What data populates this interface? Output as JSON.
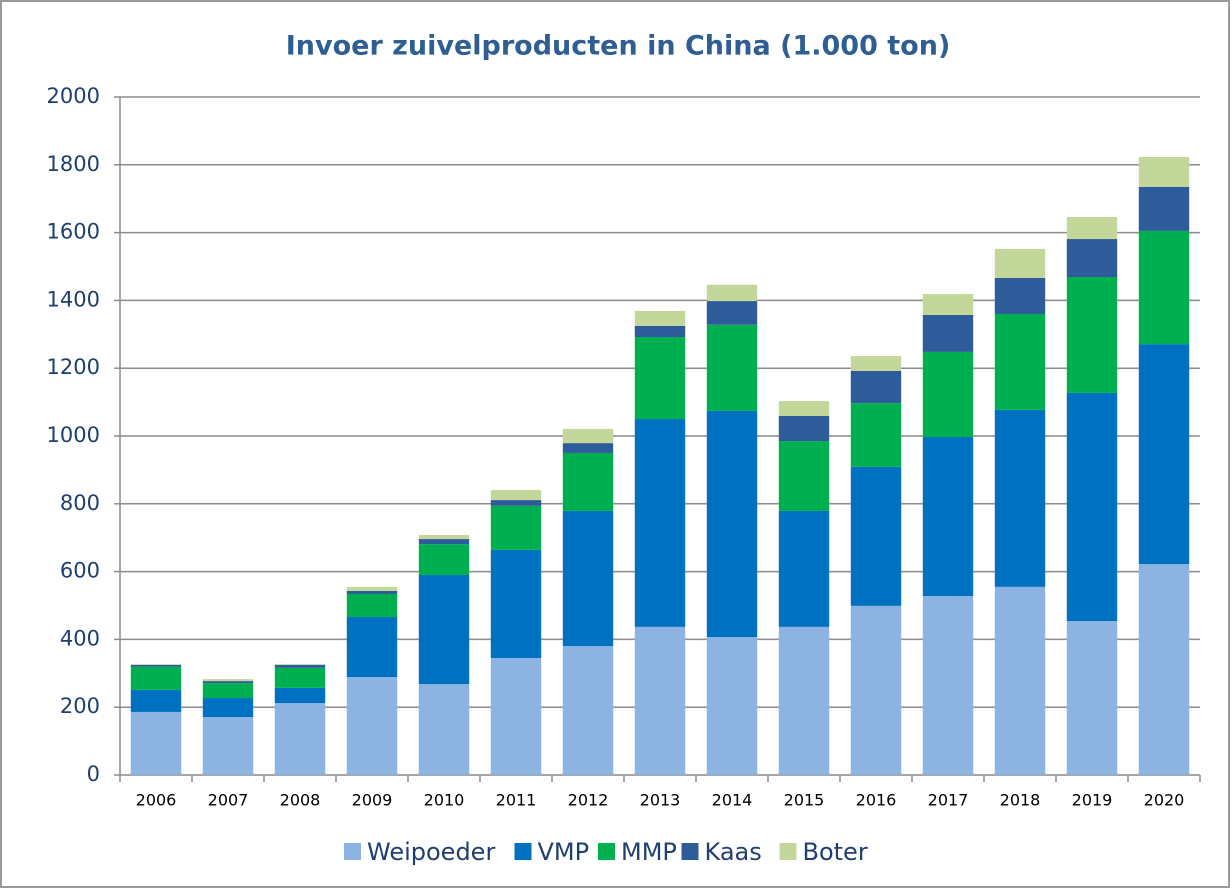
{
  "chart_data": {
    "type": "stacked_bar",
    "title": "Invoer zuivelproducten in China (1.000 ton)",
    "categories": [
      "2006",
      "2007",
      "2008",
      "2009",
      "2010",
      "2011",
      "2012",
      "2013",
      "2014",
      "2015",
      "2016",
      "2017",
      "2018",
      "2019",
      "2020"
    ],
    "series": [
      {
        "name": "Weipoeder",
        "color": "#8db3e2",
        "values": [
          186,
          171,
          212,
          289,
          268,
          345,
          380,
          437,
          407,
          437,
          499,
          528,
          555,
          454,
          622
        ]
      },
      {
        "name": "VMP",
        "color": "#0070c0",
        "values": [
          65,
          56,
          45,
          177,
          322,
          319,
          399,
          613,
          667,
          342,
          410,
          469,
          522,
          673,
          649
        ]
      },
      {
        "name": "MMP",
        "color": "#00b050",
        "values": [
          68,
          44,
          59,
          68,
          91,
          130,
          171,
          242,
          254,
          206,
          188,
          251,
          283,
          342,
          334
        ]
      },
      {
        "name": "Kaas",
        "color": "#2e5c9a",
        "values": [
          6,
          6,
          9,
          9,
          15,
          17,
          29,
          33,
          70,
          74,
          95,
          109,
          106,
          112,
          130
        ]
      },
      {
        "name": "Boter",
        "color": "#c4d79b",
        "values": [
          2,
          6,
          2,
          12,
          12,
          30,
          42,
          44,
          48,
          44,
          44,
          62,
          86,
          65,
          88
        ]
      }
    ],
    "ylim": [
      0,
      2000
    ],
    "yticks": [
      0,
      200,
      400,
      600,
      800,
      1000,
      1200,
      1400,
      1600,
      1800,
      2000
    ],
    "grid": true,
    "legend": "bottom"
  }
}
